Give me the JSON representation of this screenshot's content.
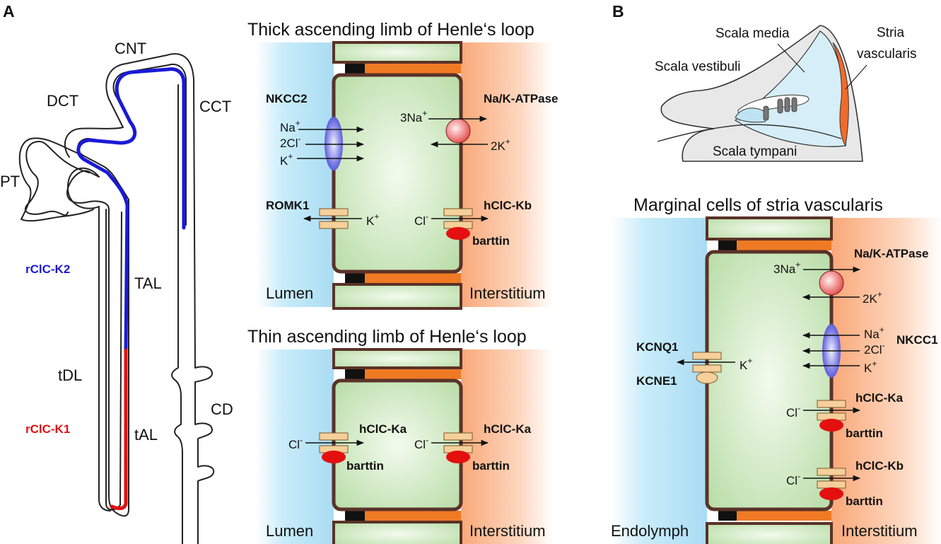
{
  "colors": {
    "blue_segment": "#1a1ad6",
    "red_segment": "#e01010",
    "lumen": "#bfe8f7",
    "interstitium": "#fbc9a8",
    "cell": "#cfe7c2",
    "cell_border": "#5a3228",
    "channel": "#f6cf9a",
    "barttin": "#e41010",
    "nkcc": "#6a6ae8",
    "atpase": "#ef6d6d",
    "stria": "#f26a2a",
    "scala_media": "#cdeaf6"
  },
  "panels": {
    "a": "A",
    "b": "B"
  },
  "nephron": {
    "pt": "PT",
    "dct": "DCT",
    "cnt": "CNT",
    "cct": "CCT",
    "tal": "TAL",
    "tdl": "tDL",
    "tal_thin": "tAL",
    "cd": "CD",
    "rclck2": "rClC-K2",
    "rclck1": "rClC-K1"
  },
  "thick": {
    "title": "Thick ascending limb of Henle‘s loop",
    "nkcc2": "NKCC2",
    "na": "Na",
    "cl2": "2Cl",
    "k": "K",
    "atpase": "Na/K-ATPase",
    "three_na": "3Na",
    "two_k": "2K",
    "romk": "ROMK1",
    "k_out": "K",
    "cl": "Cl",
    "clckb": "hClC-Kb",
    "barttin": "barttin",
    "lumen": "Lumen",
    "interstitium": "Interstitium"
  },
  "thin": {
    "title": "Thin ascending limb of Henle‘s loop",
    "cl_left": "Cl",
    "clcka_left": "hClC-Ka",
    "barttin_left": "barttin",
    "cl_right": "Cl",
    "clcka_right": "hClC-Ka",
    "barttin_right": "barttin",
    "lumen": "Lumen",
    "interstitium": "Interstitium"
  },
  "cochlea": {
    "scala_media": "Scala media",
    "stria_line1": "Stria",
    "stria_line2": "vascularis",
    "scala_vestibuli": "Scala vestibuli",
    "scala_tympani": "Scala tympani"
  },
  "marginal": {
    "title": "Marginal cells of stria vascularis",
    "atpase": "Na/K-ATPase",
    "three_na": "3Na",
    "two_k": "2K",
    "na": "Na",
    "cl2": "2Cl",
    "k": "K",
    "nkcc1": "NKCC1",
    "kcnq1": "KCNQ1",
    "kcne1": "KCNE1",
    "k_out": "K",
    "cl_a": "Cl",
    "clcka": "hClC-Ka",
    "barttin_a": "barttin",
    "cl_b": "Cl",
    "clckb": "hClC-Kb",
    "barttin_b": "barttin",
    "endolymph": "Endolymph",
    "interstitium": "Interstitium"
  },
  "superscripts": {
    "plus": "+",
    "minus": "-"
  }
}
